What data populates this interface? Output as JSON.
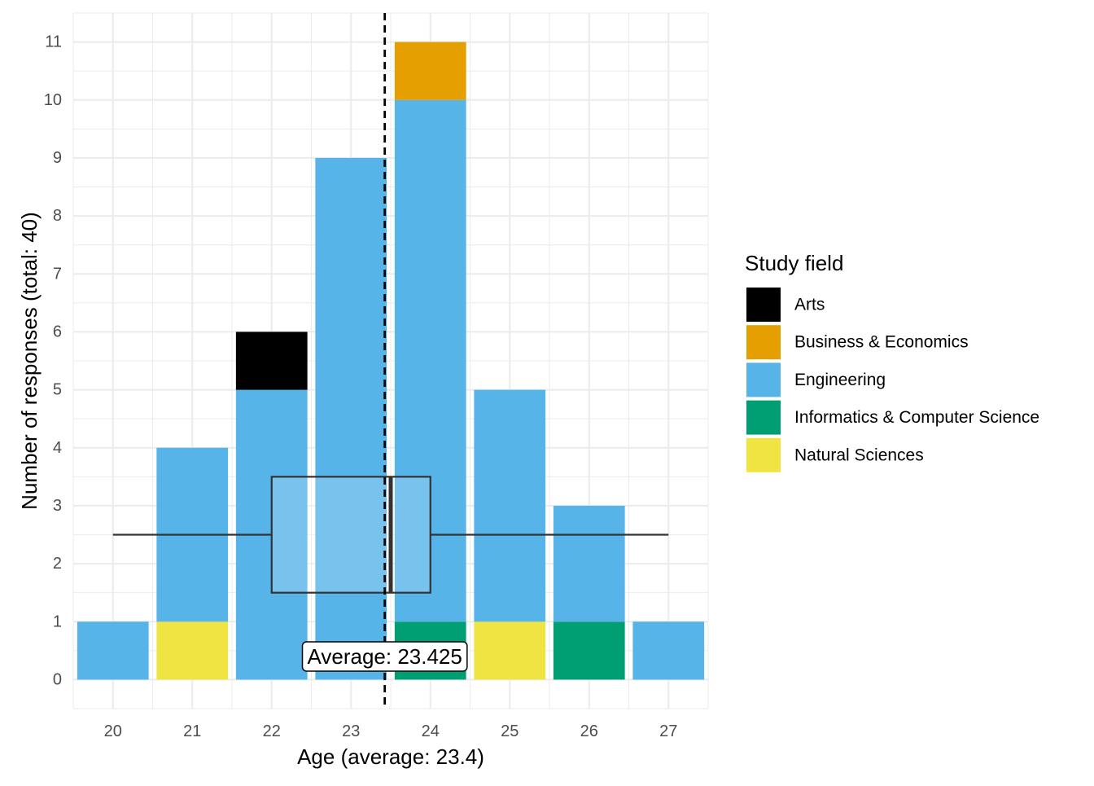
{
  "chart_data": {
    "type": "bar",
    "stacked": true,
    "x": [
      20,
      21,
      22,
      23,
      24,
      25,
      26,
      27
    ],
    "xlabel": "Age (average: 23.4)",
    "ylabel": "Number of responses (total: 40)",
    "xlim": [
      19.5,
      27.5
    ],
    "ylim": [
      -0.5,
      11.5
    ],
    "yticks": [
      0,
      1,
      2,
      3,
      4,
      5,
      6,
      7,
      8,
      9,
      10,
      11
    ],
    "grid": true,
    "legend": {
      "title": "Study field",
      "position": "right"
    },
    "series": [
      {
        "name": "Natural Sciences",
        "color": "#F0E442",
        "values": [
          0,
          1,
          0,
          0,
          0,
          1,
          0,
          0
        ]
      },
      {
        "name": "Informatics & Computer Science",
        "color": "#009E73",
        "values": [
          0,
          0,
          0,
          0,
          1,
          0,
          1,
          0
        ]
      },
      {
        "name": "Engineering",
        "color": "#56B4E9",
        "values": [
          1,
          3,
          5,
          9,
          9,
          4,
          2,
          1
        ]
      },
      {
        "name": "Business & Economics",
        "color": "#E69F00",
        "values": [
          0,
          0,
          0,
          0,
          1,
          0,
          0,
          0
        ]
      },
      {
        "name": "Arts",
        "color": "#000000",
        "values": [
          0,
          0,
          1,
          0,
          0,
          0,
          0,
          0
        ]
      }
    ],
    "legend_order": [
      "Arts",
      "Business & Economics",
      "Engineering",
      "Informatics & Computer Science",
      "Natural Sciences"
    ],
    "mean_line": {
      "x": 23.425
    },
    "annotation": {
      "text": "Average: 23.425",
      "x": 23.425,
      "y": 0.4
    },
    "boxplot": {
      "min": 20,
      "q1": 22,
      "median": 23.5,
      "q3": 24,
      "max": 27,
      "y": 2.5,
      "box_bottom": 1.5,
      "box_top": 3.5
    }
  }
}
